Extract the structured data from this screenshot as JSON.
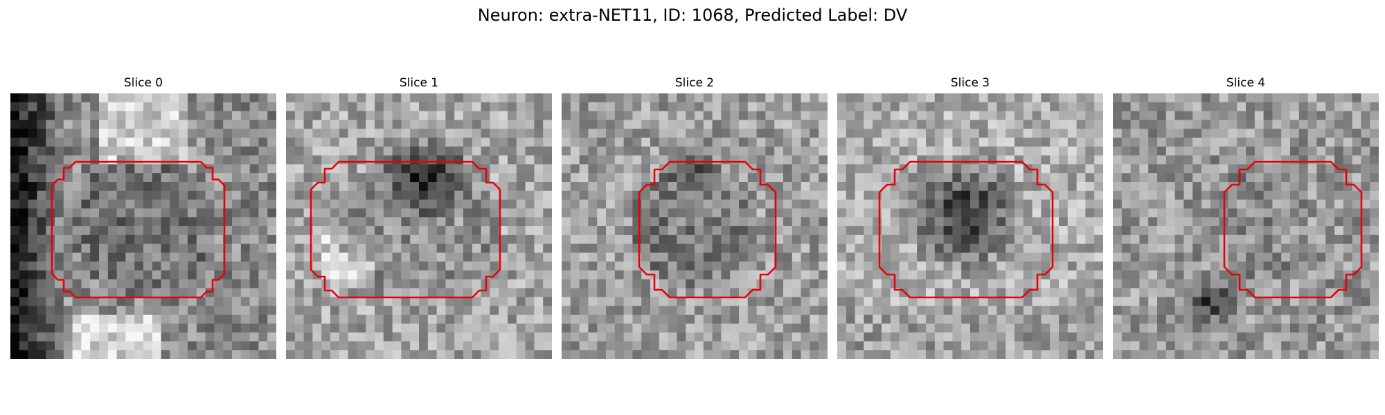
{
  "title": "Neuron: extra-NET11, ID: 1068, Predicted Label: DV",
  "outline_color": "#e8000b",
  "panels": [
    {
      "title": "Slice 0"
    },
    {
      "title": "Slice 1"
    },
    {
      "title": "Slice 2"
    },
    {
      "title": "Slice 3"
    },
    {
      "title": "Slice 4"
    }
  ]
}
